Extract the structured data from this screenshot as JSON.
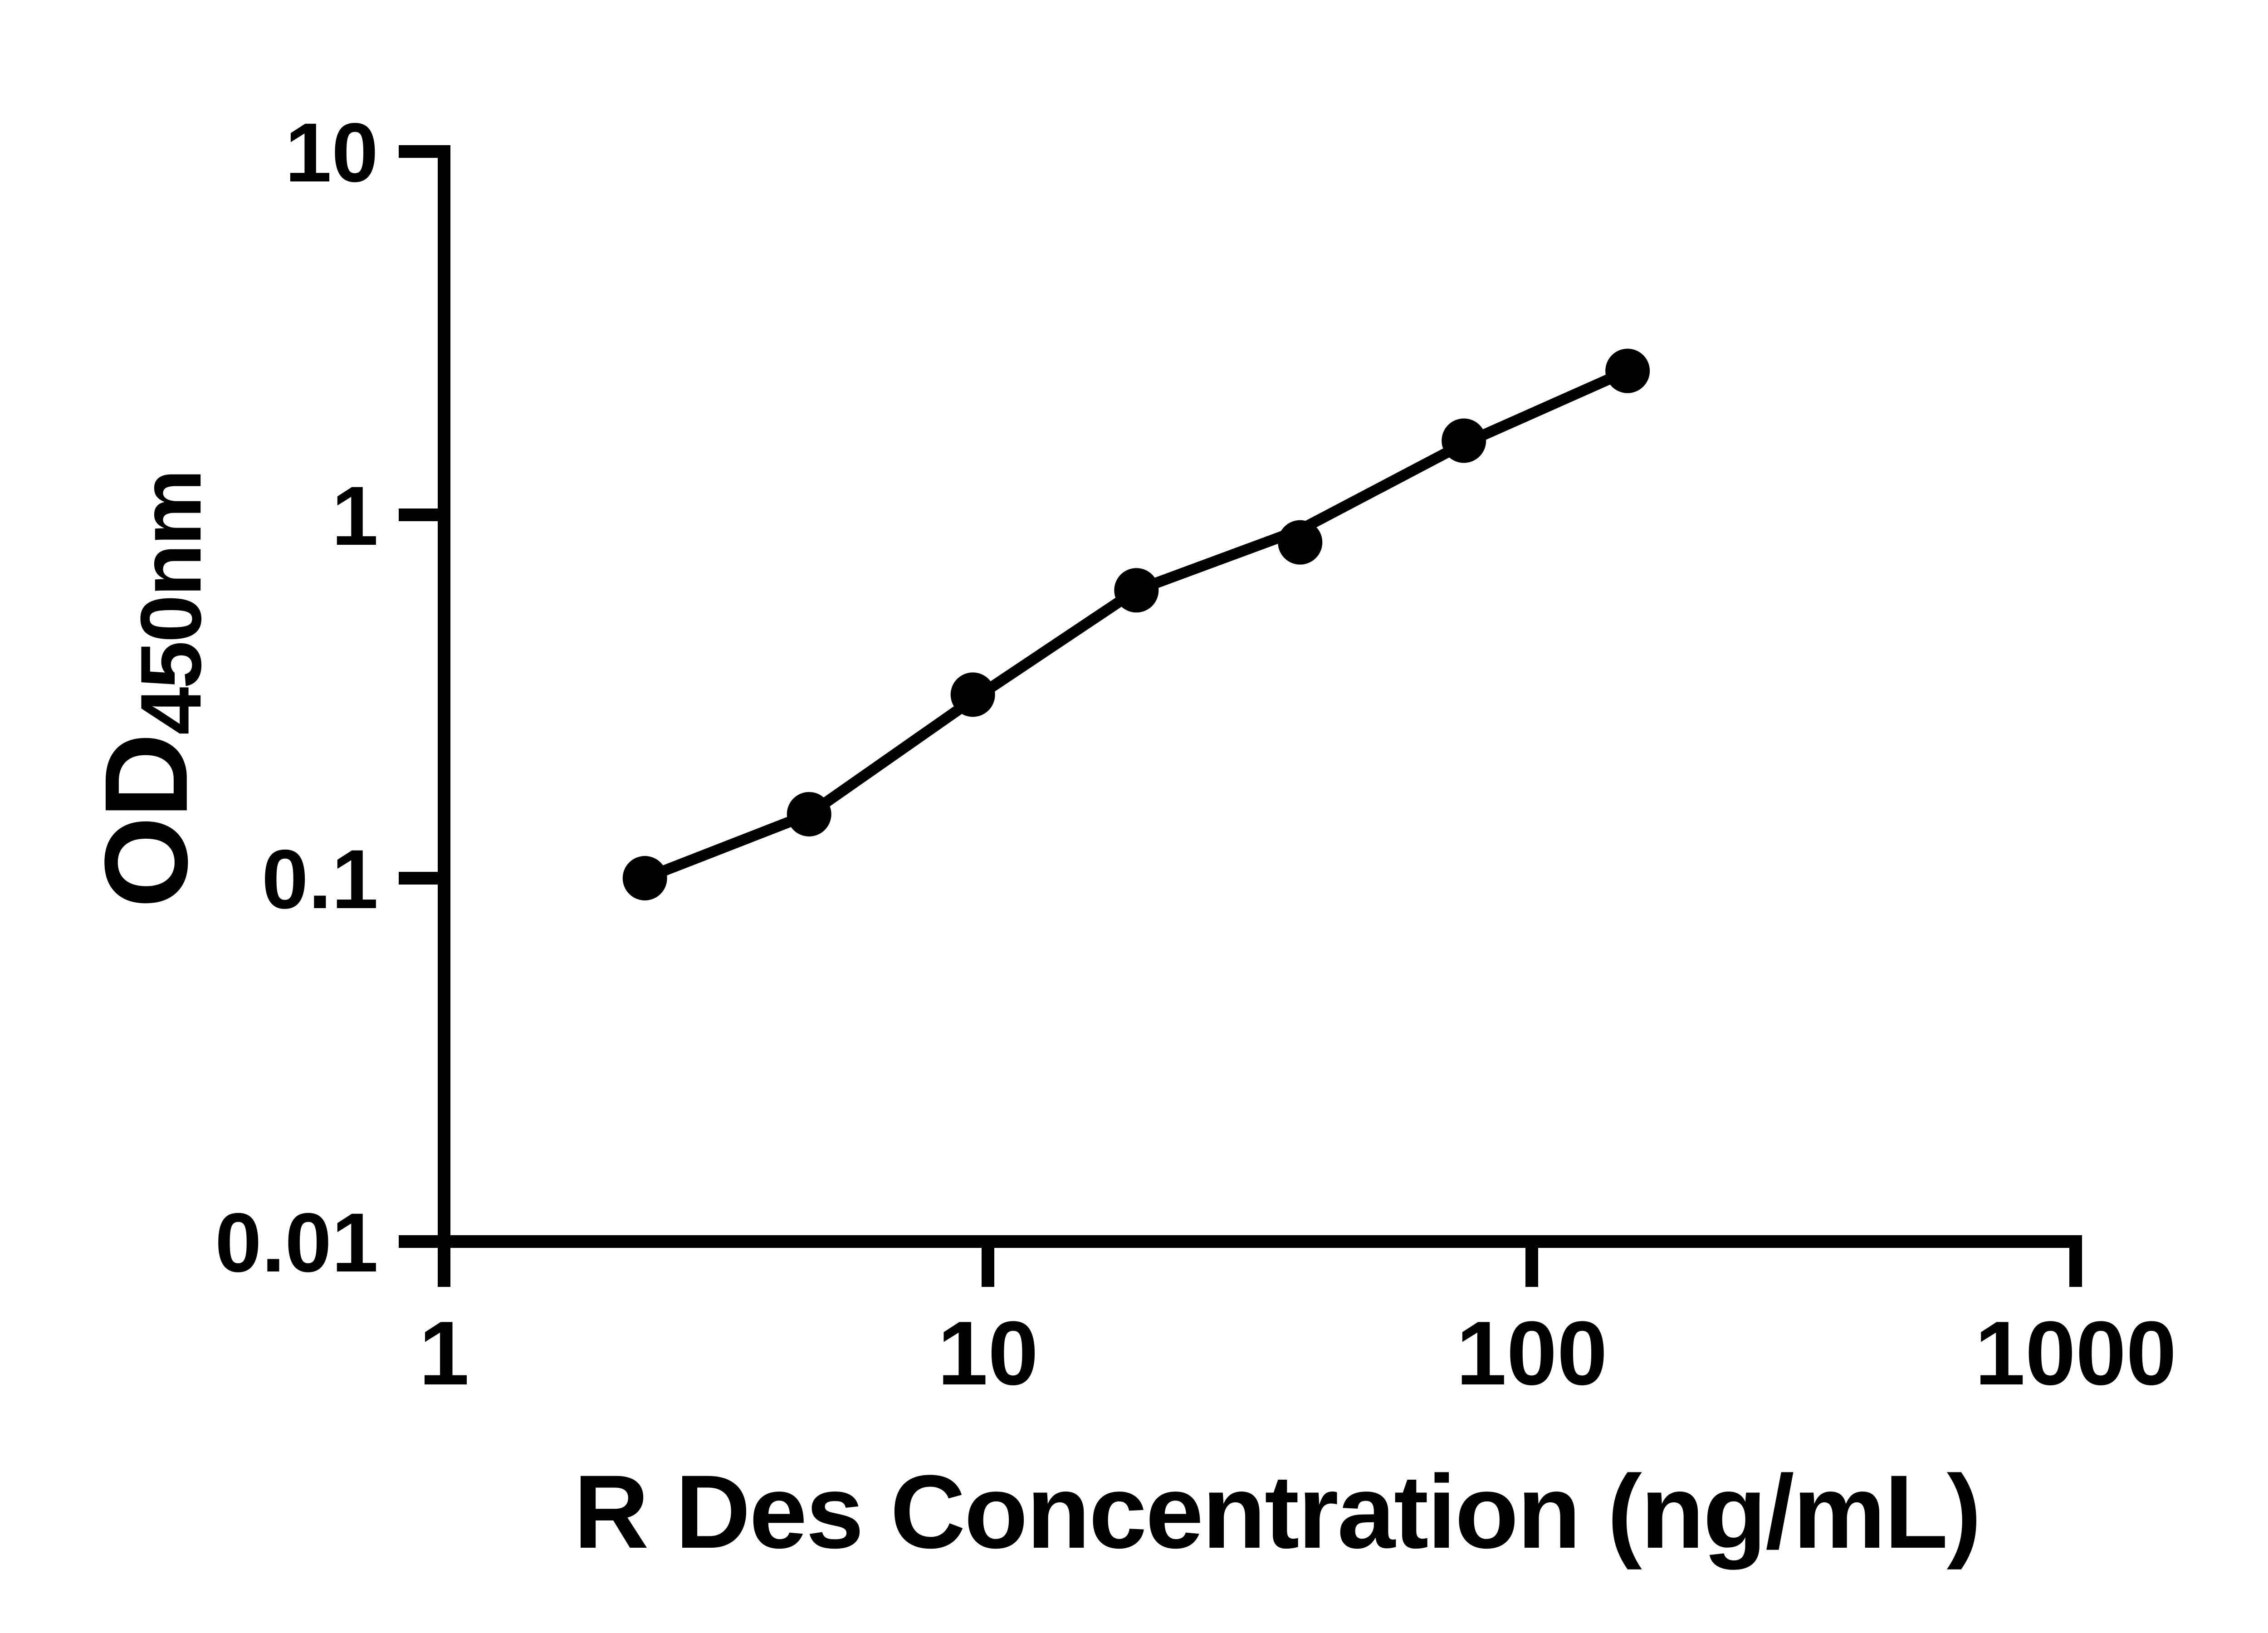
{
  "page": {
    "background_color": "#ffffff",
    "foreground_color": "#000000"
  },
  "chart_data": {
    "type": "scatter",
    "title": "",
    "xlabel": "R Des Concentration (ng/mL)",
    "ylabel_main": "OD",
    "ylabel_sub": "450nm",
    "x_scale": "log",
    "y_scale": "log",
    "xlim": [
      1,
      1000
    ],
    "ylim": [
      0.01,
      10
    ],
    "grid": false,
    "legend": null,
    "axis_color": "#000000",
    "x_ticks": [
      {
        "value": 1,
        "label": "1"
      },
      {
        "value": 10,
        "label": "10"
      },
      {
        "value": 100,
        "label": "100"
      },
      {
        "value": 1000,
        "label": "1000"
      }
    ],
    "y_ticks": [
      {
        "value": 0.01,
        "label": "0.01"
      },
      {
        "value": 0.1,
        "label": "0.1"
      },
      {
        "value": 1,
        "label": "1"
      },
      {
        "value": 10,
        "label": "10"
      }
    ],
    "series": [
      {
        "name": "standard-curve-points",
        "marker": "filled-circle",
        "color": "#000000",
        "points": [
          {
            "x": 2.34,
            "y": 0.1
          },
          {
            "x": 4.69,
            "y": 0.15
          },
          {
            "x": 9.38,
            "y": 0.32
          },
          {
            "x": 18.75,
            "y": 0.62
          },
          {
            "x": 37.5,
            "y": 0.84
          },
          {
            "x": 75,
            "y": 1.6
          },
          {
            "x": 150,
            "y": 2.49
          }
        ]
      }
    ],
    "fit_line": {
      "name": "fitted-standard-curve",
      "color": "#000000",
      "points": [
        {
          "x": 2.34,
          "y": 0.1
        },
        {
          "x": 4.69,
          "y": 0.15
        },
        {
          "x": 9.38,
          "y": 0.31
        },
        {
          "x": 18.75,
          "y": 0.62
        },
        {
          "x": 37.5,
          "y": 0.91
        },
        {
          "x": 75,
          "y": 1.57
        },
        {
          "x": 150,
          "y": 2.49
        }
      ]
    }
  }
}
